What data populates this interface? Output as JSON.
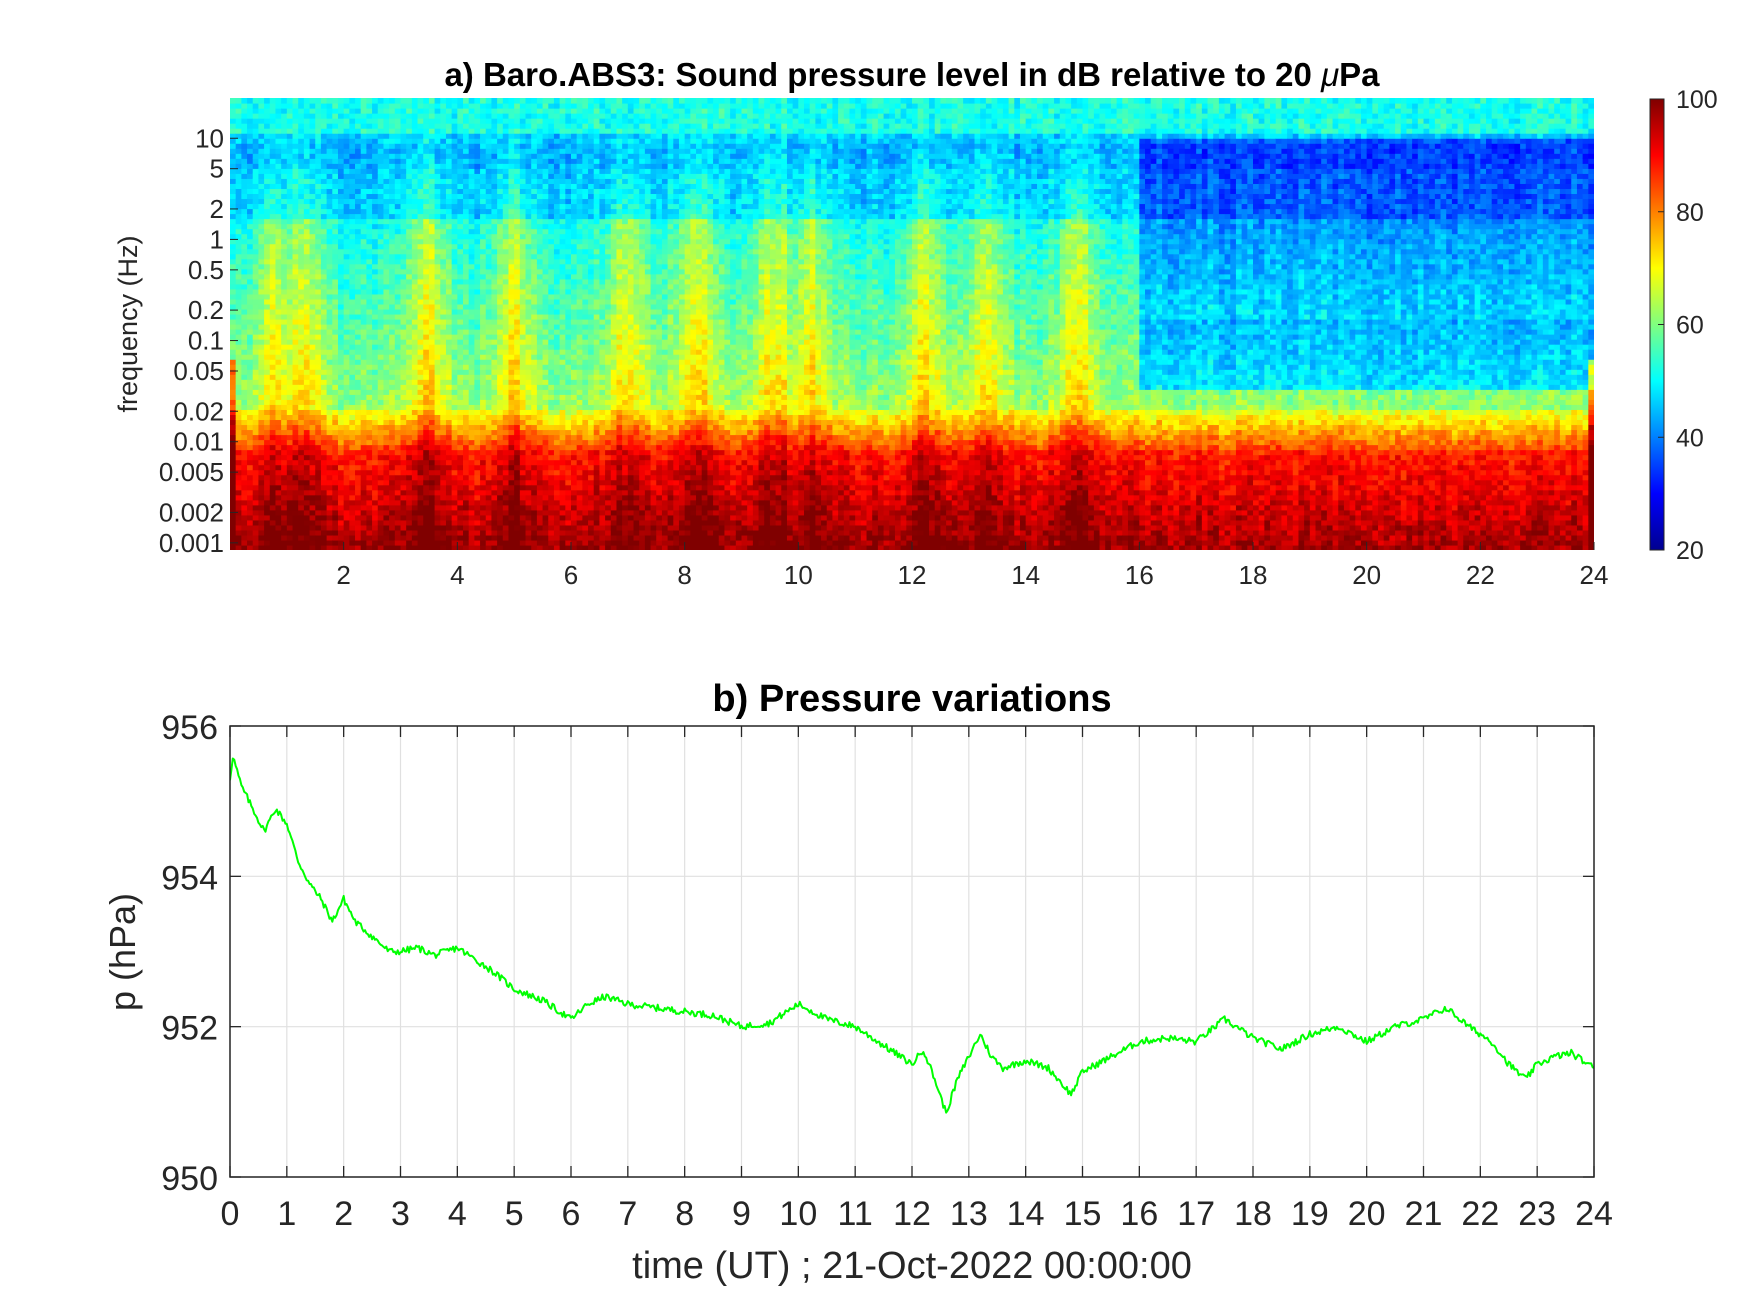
{
  "chart_data": [
    {
      "type": "heatmap",
      "title_prefix": "a) Baro.ABS3: Sound pressure level in dB relative to 20 ",
      "title_mu": "μ",
      "title_suffix": "Pa",
      "ylabel": "frequency (Hz)",
      "y_scale": "log",
      "xlim": [
        0,
        24
      ],
      "ylim": [
        0.00085,
        25
      ],
      "x_ticks": [
        2,
        4,
        6,
        8,
        10,
        12,
        14,
        16,
        18,
        20,
        22,
        24
      ],
      "y_ticks": [
        0.001,
        0.002,
        0.005,
        0.01,
        0.02,
        0.05,
        0.1,
        0.2,
        0.5,
        1,
        2,
        5,
        10
      ],
      "y_tick_labels": [
        "0.001",
        "0.002",
        "0.005",
        "0.01",
        "0.02",
        "0.05",
        "0.1",
        "0.2",
        "0.5",
        "1",
        "2",
        "5",
        "10"
      ],
      "colorbar": {
        "min": 20,
        "max": 100,
        "ticks": [
          20,
          40,
          60,
          80,
          100
        ],
        "colormap": "jet"
      },
      "events_hours": [
        0.8,
        1.3,
        3.5,
        5.0,
        7.0,
        8.2,
        9.6,
        10.2,
        12.2,
        13.3,
        14.9
      ],
      "quiet_after_hours": 16
    },
    {
      "type": "line",
      "title": "b) Pressure variations",
      "xlabel": "time (UT) ; 21-Oct-2022 00:00:00",
      "ylabel": "p (hPa)",
      "xlim": [
        0,
        24
      ],
      "ylim": [
        950,
        956
      ],
      "x_ticks": [
        0,
        1,
        2,
        3,
        4,
        5,
        6,
        7,
        8,
        9,
        10,
        11,
        12,
        13,
        14,
        15,
        16,
        17,
        18,
        19,
        20,
        21,
        22,
        23,
        24
      ],
      "y_ticks": [
        950,
        952,
        954,
        956
      ],
      "grid": true,
      "series": [
        {
          "color": "#00ff00",
          "x": [
            0,
            0.05,
            0.2,
            0.4,
            0.6,
            0.8,
            1.0,
            1.2,
            1.4,
            1.6,
            1.8,
            2.0,
            2.2,
            2.5,
            2.8,
            3.0,
            3.3,
            3.6,
            4.0,
            4.3,
            4.6,
            5.0,
            5.5,
            6.0,
            6.3,
            6.6,
            7.0,
            7.5,
            8.0,
            8.5,
            9.0,
            9.5,
            10.0,
            10.5,
            11.0,
            11.5,
            12.0,
            12.2,
            12.4,
            12.6,
            12.8,
            13.0,
            13.2,
            13.4,
            13.6,
            14.0,
            14.4,
            14.8,
            15.0,
            15.5,
            16.0,
            16.5,
            17.0,
            17.5,
            18.0,
            18.5,
            19.0,
            19.5,
            20.0,
            20.5,
            21.0,
            21.4,
            21.8,
            22.2,
            22.5,
            22.8,
            23.0,
            23.3,
            23.6,
            24.0
          ],
          "values": [
            955.3,
            955.6,
            955.2,
            954.9,
            954.6,
            954.9,
            954.7,
            954.2,
            953.9,
            953.7,
            953.4,
            953.7,
            953.4,
            953.2,
            953.0,
            953.0,
            953.05,
            952.95,
            953.05,
            952.9,
            952.75,
            952.5,
            952.35,
            952.1,
            952.3,
            952.4,
            952.3,
            952.25,
            952.2,
            952.15,
            952.0,
            952.05,
            952.3,
            952.1,
            952.0,
            951.75,
            951.5,
            951.7,
            951.3,
            950.85,
            951.3,
            951.6,
            951.9,
            951.6,
            951.45,
            951.55,
            951.45,
            951.1,
            951.4,
            951.6,
            951.8,
            951.85,
            951.8,
            952.1,
            951.85,
            951.7,
            951.9,
            952.0,
            951.8,
            952.0,
            952.1,
            952.25,
            952.0,
            951.8,
            951.5,
            951.3,
            951.5,
            951.6,
            951.65,
            951.45
          ]
        }
      ]
    }
  ]
}
